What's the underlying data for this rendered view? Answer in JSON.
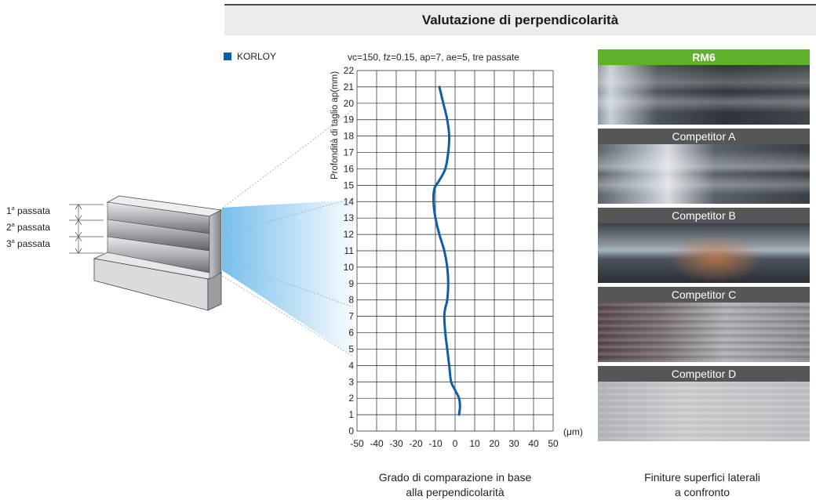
{
  "title": "Valutazione di perpendicolarità",
  "legend": {
    "label": "KORLOY",
    "color": "#0d5ea8"
  },
  "chart_data": {
    "type": "line",
    "subtitle": "vc=150, fz=0.15, ap=7, ae=5, tre passate",
    "ylabel": "Profondità di taglio ap(mm)",
    "xunit": "(μm)",
    "xlim": [
      -50,
      50
    ],
    "ylim": [
      0,
      22
    ],
    "xticks": [
      -50,
      -40,
      -30,
      -20,
      -10,
      0,
      10,
      20,
      30,
      40,
      50
    ],
    "yticks": [
      0,
      1,
      2,
      3,
      4,
      5,
      6,
      7,
      8,
      9,
      10,
      11,
      12,
      13,
      14,
      15,
      16,
      17,
      18,
      19,
      20,
      21,
      22
    ],
    "grid": true,
    "series": [
      {
        "name": "KORLOY",
        "color": "#0d5ea8",
        "points": [
          [
            2,
            1
          ],
          [
            2.5,
            1.5
          ],
          [
            2,
            2
          ],
          [
            0,
            2.5
          ],
          [
            -2,
            3
          ],
          [
            -3,
            4
          ],
          [
            -4,
            5
          ],
          [
            -5,
            6
          ],
          [
            -5.5,
            7
          ],
          [
            -5,
            7.5
          ],
          [
            -4,
            8
          ],
          [
            -3.5,
            9
          ],
          [
            -4,
            10
          ],
          [
            -5.5,
            11
          ],
          [
            -8,
            12
          ],
          [
            -10,
            13
          ],
          [
            -11,
            14
          ],
          [
            -10.5,
            14.8
          ],
          [
            -8,
            15.3
          ],
          [
            -5,
            16
          ],
          [
            -3.5,
            17
          ],
          [
            -3,
            18
          ],
          [
            -4,
            19
          ],
          [
            -6,
            20
          ],
          [
            -8,
            21
          ]
        ]
      }
    ]
  },
  "pass_labels": [
    {
      "num": "1",
      "sup": "a",
      "text": "passata"
    },
    {
      "num": "2",
      "sup": "a",
      "text": "passata"
    },
    {
      "num": "3",
      "sup": "a",
      "text": "passata"
    }
  ],
  "photos": [
    {
      "label": "RM6"
    },
    {
      "label": "Competitor A"
    },
    {
      "label": "Competitor B"
    },
    {
      "label": "Competitor C"
    },
    {
      "label": "Competitor D"
    }
  ],
  "captions": {
    "left": [
      "Grado di comparazione in base",
      "alla perpendicolarità"
    ],
    "right": [
      "Finiture superfici laterali",
      "a confronto"
    ]
  }
}
